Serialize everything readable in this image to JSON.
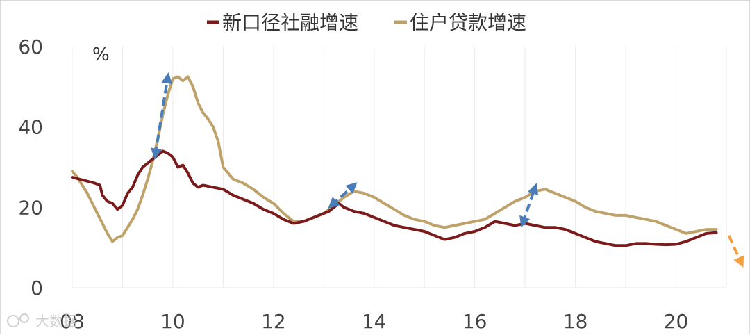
{
  "chart_data": {
    "type": "line",
    "unit_label": "%",
    "x_tick_labels": [
      "08",
      "10",
      "12",
      "14",
      "16",
      "18",
      "20"
    ],
    "x_ticks": [
      2008,
      2010,
      2012,
      2014,
      2016,
      2018,
      2020
    ],
    "xlim": [
      2008,
      2021
    ],
    "y_ticks": [
      0,
      20,
      40,
      60
    ],
    "ylim": [
      0,
      60
    ],
    "grid": "vertical",
    "legend_position": "top-center",
    "series": [
      {
        "name": "新口径社融增速",
        "color": "#7B1A1A",
        "points": [
          [
            2008.0,
            27.5
          ],
          [
            2008.15,
            27.0
          ],
          [
            2008.3,
            26.5
          ],
          [
            2008.45,
            26.0
          ],
          [
            2008.55,
            25.5
          ],
          [
            2008.6,
            23.0
          ],
          [
            2008.7,
            21.5
          ],
          [
            2008.8,
            21.0
          ],
          [
            2008.9,
            19.5
          ],
          [
            2009.0,
            20.5
          ],
          [
            2009.1,
            23.5
          ],
          [
            2009.2,
            25.0
          ],
          [
            2009.3,
            28.0
          ],
          [
            2009.4,
            30.0
          ],
          [
            2009.5,
            31.0
          ],
          [
            2009.6,
            32.0
          ],
          [
            2009.7,
            33.0
          ],
          [
            2009.8,
            34.0
          ],
          [
            2009.9,
            33.5
          ],
          [
            2010.0,
            32.5
          ],
          [
            2010.1,
            30.0
          ],
          [
            2010.2,
            30.5
          ],
          [
            2010.3,
            28.5
          ],
          [
            2010.4,
            26.0
          ],
          [
            2010.5,
            25.0
          ],
          [
            2010.6,
            25.5
          ],
          [
            2010.8,
            25.0
          ],
          [
            2011.0,
            24.5
          ],
          [
            2011.2,
            23.0
          ],
          [
            2011.4,
            22.0
          ],
          [
            2011.6,
            21.0
          ],
          [
            2011.8,
            19.5
          ],
          [
            2012.0,
            18.5
          ],
          [
            2012.2,
            17.0
          ],
          [
            2012.4,
            16.0
          ],
          [
            2012.6,
            16.5
          ],
          [
            2012.8,
            17.5
          ],
          [
            2013.0,
            18.5
          ],
          [
            2013.1,
            19.0
          ],
          [
            2013.2,
            20.0
          ],
          [
            2013.3,
            21.0
          ],
          [
            2013.4,
            20.0
          ],
          [
            2013.6,
            19.0
          ],
          [
            2013.8,
            18.5
          ],
          [
            2014.0,
            17.5
          ],
          [
            2014.2,
            16.5
          ],
          [
            2014.4,
            15.5
          ],
          [
            2014.6,
            15.0
          ],
          [
            2014.8,
            14.5
          ],
          [
            2015.0,
            14.0
          ],
          [
            2015.2,
            13.0
          ],
          [
            2015.4,
            12.0
          ],
          [
            2015.6,
            12.5
          ],
          [
            2015.8,
            13.5
          ],
          [
            2016.0,
            14.0
          ],
          [
            2016.2,
            15.0
          ],
          [
            2016.4,
            16.5
          ],
          [
            2016.6,
            16.0
          ],
          [
            2016.8,
            15.5
          ],
          [
            2017.0,
            16.0
          ],
          [
            2017.2,
            15.5
          ],
          [
            2017.4,
            15.0
          ],
          [
            2017.6,
            15.0
          ],
          [
            2017.8,
            14.5
          ],
          [
            2018.0,
            13.5
          ],
          [
            2018.2,
            12.5
          ],
          [
            2018.4,
            11.5
          ],
          [
            2018.6,
            11.0
          ],
          [
            2018.8,
            10.5
          ],
          [
            2019.0,
            10.5
          ],
          [
            2019.2,
            11.0
          ],
          [
            2019.4,
            11.0
          ],
          [
            2019.6,
            10.8
          ],
          [
            2019.8,
            10.7
          ],
          [
            2020.0,
            10.8
          ],
          [
            2020.2,
            11.5
          ],
          [
            2020.4,
            12.5
          ],
          [
            2020.6,
            13.5
          ],
          [
            2020.8,
            13.7
          ]
        ]
      },
      {
        "name": "住户贷款增速",
        "color": "#BFA26A",
        "points": [
          [
            2008.0,
            29.0
          ],
          [
            2008.1,
            27.5
          ],
          [
            2008.2,
            25.5
          ],
          [
            2008.3,
            23.5
          ],
          [
            2008.4,
            21.0
          ],
          [
            2008.5,
            18.5
          ],
          [
            2008.6,
            16.0
          ],
          [
            2008.7,
            13.5
          ],
          [
            2008.8,
            11.5
          ],
          [
            2008.9,
            12.5
          ],
          [
            2009.0,
            13.0
          ],
          [
            2009.1,
            15.0
          ],
          [
            2009.2,
            17.0
          ],
          [
            2009.3,
            19.5
          ],
          [
            2009.4,
            23.0
          ],
          [
            2009.5,
            27.0
          ],
          [
            2009.6,
            31.5
          ],
          [
            2009.7,
            37.0
          ],
          [
            2009.8,
            43.0
          ],
          [
            2009.9,
            48.0
          ],
          [
            2010.0,
            52.0
          ],
          [
            2010.1,
            52.5
          ],
          [
            2010.2,
            51.5
          ],
          [
            2010.3,
            52.5
          ],
          [
            2010.4,
            50.0
          ],
          [
            2010.5,
            46.0
          ],
          [
            2010.6,
            43.5
          ],
          [
            2010.7,
            42.0
          ],
          [
            2010.8,
            40.0
          ],
          [
            2010.9,
            36.5
          ],
          [
            2011.0,
            30.0
          ],
          [
            2011.2,
            27.0
          ],
          [
            2011.4,
            26.0
          ],
          [
            2011.6,
            24.5
          ],
          [
            2011.8,
            22.5
          ],
          [
            2012.0,
            21.0
          ],
          [
            2012.2,
            18.5
          ],
          [
            2012.4,
            16.5
          ],
          [
            2012.6,
            16.5
          ],
          [
            2012.8,
            17.5
          ],
          [
            2013.0,
            18.5
          ],
          [
            2013.2,
            20.5
          ],
          [
            2013.4,
            22.5
          ],
          [
            2013.6,
            24.0
          ],
          [
            2013.8,
            23.5
          ],
          [
            2014.0,
            22.5
          ],
          [
            2014.2,
            21.0
          ],
          [
            2014.4,
            19.5
          ],
          [
            2014.6,
            18.0
          ],
          [
            2014.8,
            17.0
          ],
          [
            2015.0,
            16.5
          ],
          [
            2015.2,
            15.5
          ],
          [
            2015.4,
            15.0
          ],
          [
            2015.6,
            15.5
          ],
          [
            2015.8,
            16.0
          ],
          [
            2016.0,
            16.5
          ],
          [
            2016.2,
            17.0
          ],
          [
            2016.4,
            18.5
          ],
          [
            2016.6,
            20.0
          ],
          [
            2016.8,
            21.5
          ],
          [
            2017.0,
            22.5
          ],
          [
            2017.2,
            24.0
          ],
          [
            2017.4,
            24.5
          ],
          [
            2017.6,
            23.5
          ],
          [
            2017.8,
            22.5
          ],
          [
            2018.0,
            21.5
          ],
          [
            2018.2,
            20.0
          ],
          [
            2018.4,
            19.0
          ],
          [
            2018.6,
            18.5
          ],
          [
            2018.8,
            18.0
          ],
          [
            2019.0,
            18.0
          ],
          [
            2019.2,
            17.5
          ],
          [
            2019.4,
            17.0
          ],
          [
            2019.6,
            16.5
          ],
          [
            2019.8,
            15.5
          ],
          [
            2020.0,
            14.5
          ],
          [
            2020.2,
            13.5
          ],
          [
            2020.4,
            14.0
          ],
          [
            2020.6,
            14.5
          ],
          [
            2020.8,
            14.5
          ]
        ]
      }
    ],
    "annotations": [
      {
        "type": "double-arrow",
        "color": "#4A7EBB",
        "from": [
          2009.65,
          33.0
        ],
        "to": [
          2009.9,
          52.5
        ]
      },
      {
        "type": "double-arrow",
        "color": "#4A7EBB",
        "from": [
          2013.15,
          20.5
        ],
        "to": [
          2013.6,
          25.5
        ]
      },
      {
        "type": "double-arrow",
        "color": "#4A7EBB",
        "from": [
          2016.95,
          16.0
        ],
        "to": [
          2017.2,
          25.0
        ]
      },
      {
        "type": "arrow",
        "color": "#F4A040",
        "from": [
          2021.05,
          13.0
        ],
        "to": [
          2021.3,
          6.0
        ]
      }
    ]
  },
  "watermark": "大数据"
}
